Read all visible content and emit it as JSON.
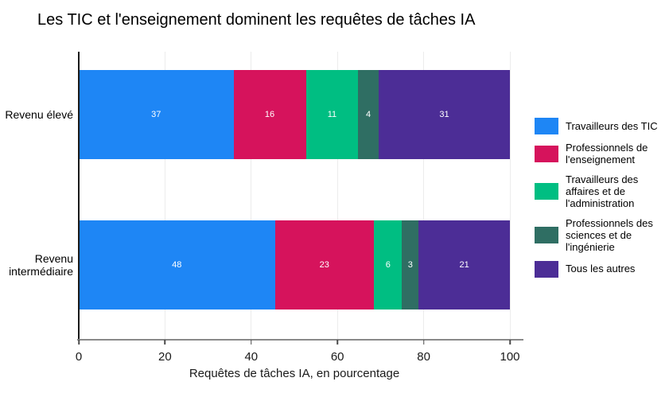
{
  "chart_data": {
    "type": "bar",
    "orientation": "horizontal",
    "stacked": true,
    "title": "Les TIC et l'enseignement dominent les requêtes de tâches IA",
    "xlabel": "Requêtes de tâches IA, en pourcentage",
    "categories": [
      "Revenu élevé",
      "Revenu intermédiaire"
    ],
    "series": [
      {
        "name": "Travailleurs des TIC",
        "color": "#1E86F5",
        "values": [
          37,
          48
        ]
      },
      {
        "name": "Professionnels de l'enseignement",
        "color": "#D6135C",
        "values": [
          16,
          23
        ]
      },
      {
        "name": "Travailleurs des affaires et de l'administration",
        "color": "#00BE82",
        "values": [
          11,
          6
        ]
      },
      {
        "name": "Professionnels des sciences et de l'ingénierie",
        "color": "#2F6E63",
        "values": [
          4,
          3
        ]
      },
      {
        "name": "Tous les autres",
        "color": "#4C2D96",
        "values": [
          31,
          21
        ]
      }
    ],
    "xlim": [
      0,
      100
    ],
    "xticks": [
      0,
      20,
      40,
      60,
      80,
      100
    ],
    "grid": true,
    "legend_position": "right",
    "value_label_color": "#ffffff"
  },
  "colors": {
    "x_axis_line": "#8a8a8a",
    "y_axis_line": "#1a1a1a",
    "gridline": "#ececec",
    "title_text": "#000000",
    "axis_text": "#1a1a1a"
  }
}
